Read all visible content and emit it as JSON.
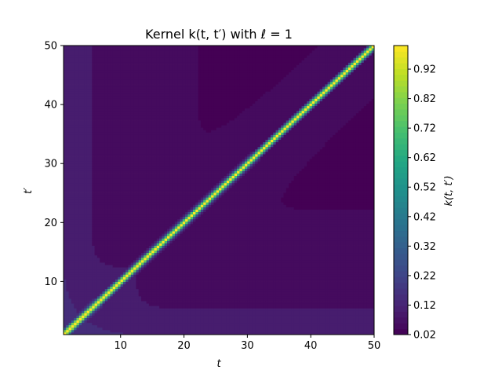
{
  "chart_data": {
    "type": "heatmap",
    "title": "Kernel k(t, t′) with ℓ = 1",
    "xlabel": "t",
    "ylabel": "t′",
    "colorbar_label": "k(t, t′)",
    "colormap": "viridis",
    "xlim": [
      1,
      50
    ],
    "ylim": [
      1,
      50
    ],
    "x_ticks": [
      10,
      20,
      30,
      40,
      50
    ],
    "y_ticks": [
      10,
      20,
      30,
      40,
      50
    ],
    "colorbar_range": [
      0.02,
      1.0
    ],
    "colorbar_ticks": [
      "0.02",
      "0.12",
      "0.22",
      "0.32",
      "0.42",
      "0.52",
      "0.62",
      "0.72",
      "0.82",
      "0.92"
    ],
    "lengthscale": 1
  }
}
